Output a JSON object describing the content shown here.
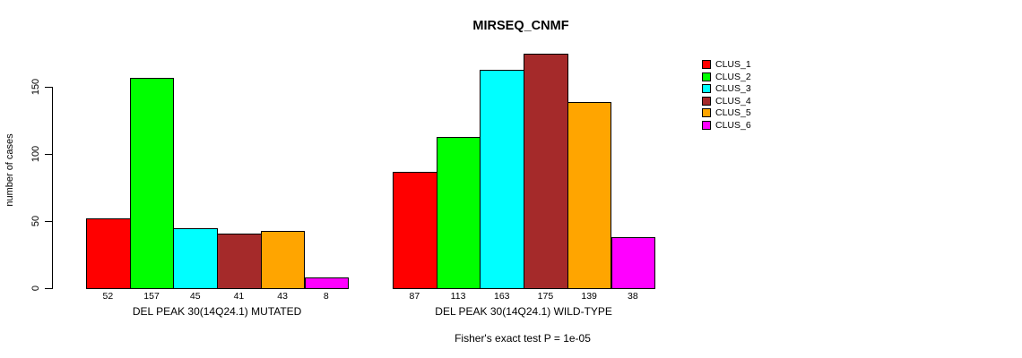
{
  "title": "MIRSEQ_CNMF",
  "chart_data": {
    "type": "bar",
    "title": "MIRSEQ_CNMF",
    "xlabel": "",
    "ylabel": "number of cases",
    "ylim": [
      0,
      175
    ],
    "yticks": [
      0,
      50,
      100,
      150
    ],
    "grid": false,
    "legend_position": "right-outside",
    "groups": [
      {
        "label": "DEL PEAK 30(14Q24.1) MUTATED",
        "values": [
          52,
          157,
          45,
          41,
          43,
          8
        ]
      },
      {
        "label": "DEL PEAK 30(14Q24.1) WILD-TYPE",
        "values": [
          87,
          113,
          163,
          175,
          139,
          38
        ]
      }
    ],
    "series": [
      {
        "name": "CLUS_1",
        "color": "#FF0000",
        "values": [
          52,
          87
        ]
      },
      {
        "name": "CLUS_2",
        "color": "#00FF00",
        "values": [
          157,
          113
        ]
      },
      {
        "name": "CLUS_3",
        "color": "#00FFFF",
        "values": [
          45,
          163
        ]
      },
      {
        "name": "CLUS_4",
        "color": "#A52A2A",
        "values": [
          41,
          175
        ]
      },
      {
        "name": "CLUS_5",
        "color": "#FFA500",
        "values": [
          43,
          139
        ]
      },
      {
        "name": "CLUS_6",
        "color": "#FF00FF",
        "values": [
          8,
          38
        ]
      }
    ],
    "annotation": "Fisher's exact test P = 1e-05",
    "axis_color": "#000000",
    "bar_border_color": "#000000"
  }
}
